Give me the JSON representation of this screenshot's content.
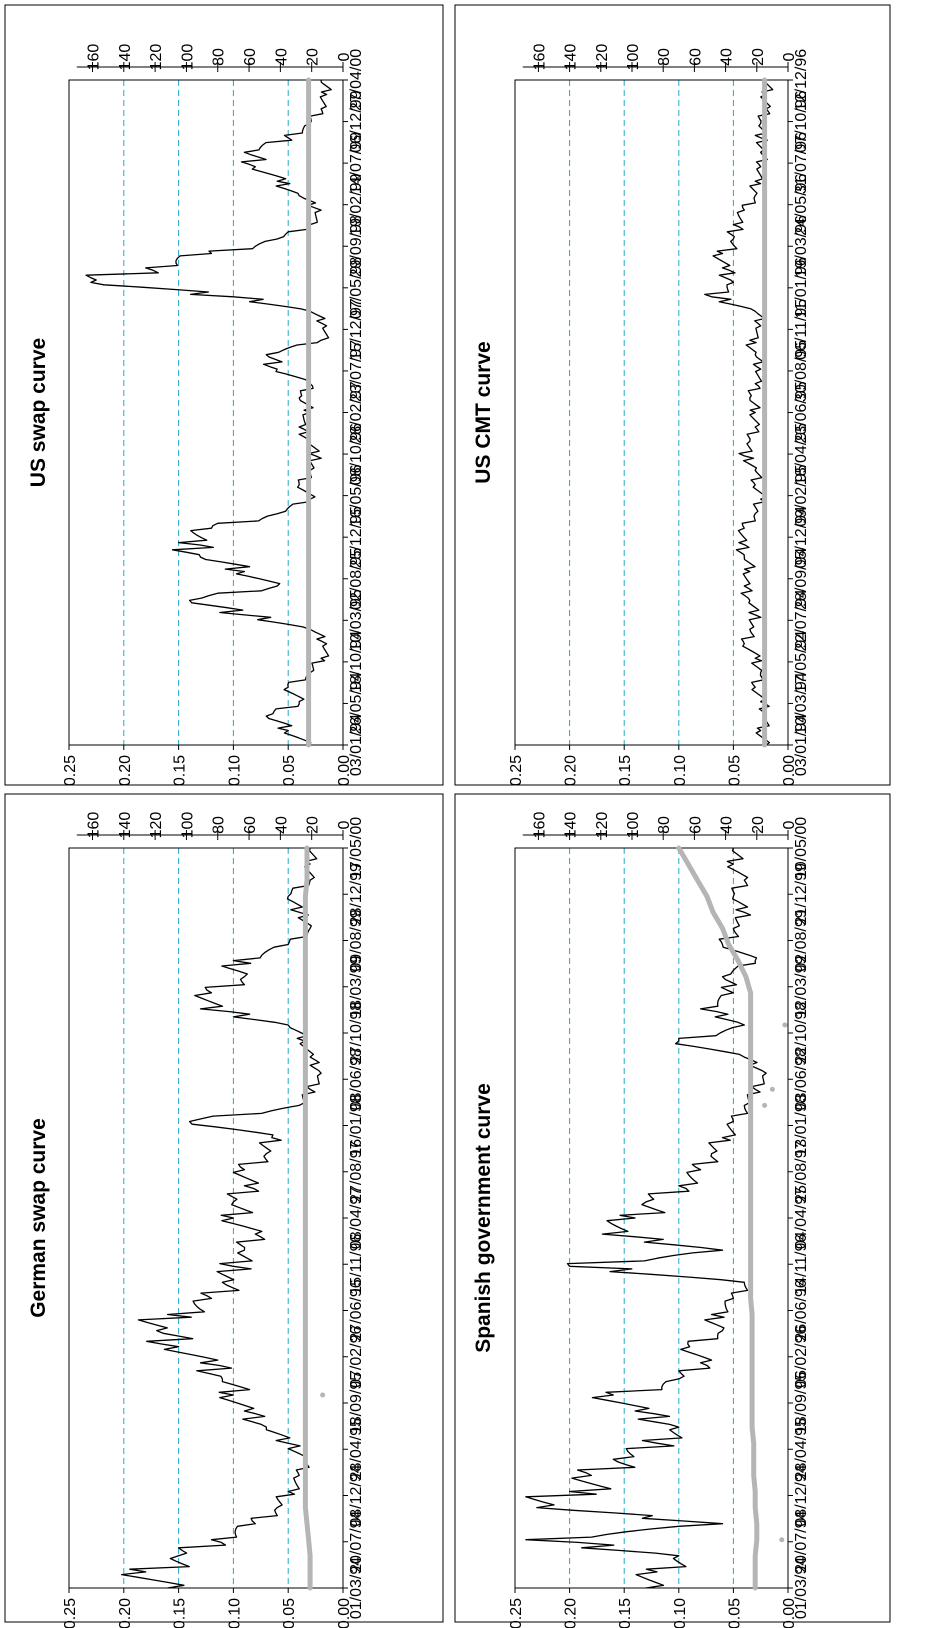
{
  "chart_data": [
    {
      "type": "line",
      "title": "German swap curve",
      "ylim_left": [
        0,
        0.25
      ],
      "left_ticks": [
        "0.00",
        "0.05",
        "0.10",
        "0.15",
        "0.20",
        "0.25"
      ],
      "ylim_right": [
        0,
        175
      ],
      "right_ticks": [
        "0",
        "20",
        "40",
        "60",
        "80",
        "100",
        "120",
        "140",
        "160"
      ],
      "grid": true,
      "rotation": "page rotated 90° counter-clockwise",
      "x_labels": [
        "01/03/94",
        "20/07/94",
        "08/12/94",
        "28/04/95",
        "18/09/95",
        "07/02/96",
        "27/06/96",
        "15/11/96",
        "08/04/97",
        "27/08/97",
        "16/01/98",
        "08/06/98",
        "27/10/98",
        "18/03/99",
        "09/08/99",
        "28/12/99",
        "17/05/00"
      ],
      "series": [
        {
          "color": "#000000",
          "values": [
            0.16,
            0.18,
            0.15,
            0.12,
            0.08,
            0.06,
            0.05,
            0.04,
            0.035,
            0.05,
            0.07,
            0.09,
            0.1,
            0.11,
            0.13,
            0.15,
            0.17,
            0.16,
            0.12,
            0.11,
            0.1,
            0.09,
            0.08,
            0.1,
            0.1,
            0.09,
            0.09,
            0.07,
            0.065,
            0.14,
            0.04,
            0.03,
            0.02,
            0.03,
            0.035,
            0.05,
            0.13,
            0.12,
            0.09,
            0.1,
            0.05,
            0.03,
            0.04,
            0.05,
            0.03,
            0.03,
            0.03
          ]
        },
        {
          "color": "#b5b5b5",
          "values": [
            21,
            21,
            21,
            22,
            23,
            24,
            24,
            24,
            24,
            24,
            24,
            24,
            24,
            24,
            24,
            24,
            24,
            24,
            24,
            24,
            24,
            24,
            24,
            24,
            24,
            24,
            24,
            24,
            24,
            24,
            24,
            24,
            24,
            24,
            24,
            24,
            24,
            24,
            24,
            24,
            24,
            24,
            24,
            24,
            23,
            23,
            23
          ],
          "outliers": [
            [
              12,
              13
            ]
          ]
        }
      ]
    },
    {
      "type": "line",
      "title": "US swap curve",
      "ylim_left": [
        0,
        0.25
      ],
      "left_ticks": [
        "0.00",
        "0.05",
        "0.10",
        "0.15",
        "0.20",
        "0.25"
      ],
      "ylim_right": [
        0,
        175
      ],
      "right_ticks": [
        "0",
        "20",
        "40",
        "60",
        "80",
        "100",
        "120",
        "140",
        "160"
      ],
      "grid": true,
      "rotation": "page rotated 90° counter-clockwise",
      "x_labels": [
        "03/01/94",
        "26/05/94",
        "18/10/94",
        "10/03/95",
        "02/08/95",
        "25/12/95",
        "16/05/96",
        "08/10/96",
        "28/02/97",
        "23/07/97",
        "15/12/97",
        "07/05/98",
        "29/09/98",
        "19/02/99",
        "14/07/99",
        "06/12/99",
        "27/04/00"
      ],
      "series": [
        {
          "color": "#000000",
          "values": [
            0.03,
            0.05,
            0.07,
            0.04,
            0.05,
            0.03,
            0.02,
            0.015,
            0.03,
            0.09,
            0.14,
            0.06,
            0.09,
            0.13,
            0.15,
            0.12,
            0.06,
            0.03,
            0.04,
            0.03,
            0.025,
            0.03,
            0.04,
            0.03,
            0.04,
            0.03,
            0.06,
            0.07,
            0.02,
            0.015,
            0.03,
            0.1,
            0.23,
            0.18,
            0.12,
            0.06,
            0.03,
            0.02,
            0.04,
            0.06,
            0.08,
            0.09,
            0.05,
            0.03,
            0.02,
            0.015,
            0.02
          ]
        },
        {
          "color": "#b5b5b5",
          "values": [
            22,
            22,
            22,
            22,
            22,
            22,
            22,
            22,
            22,
            22,
            22,
            22,
            22,
            22,
            22,
            22,
            22,
            22,
            22,
            22,
            22,
            22,
            22,
            22,
            22,
            22,
            22,
            22,
            22,
            22,
            22,
            22,
            22,
            22,
            22,
            22,
            22,
            22,
            22,
            22,
            22,
            22,
            22,
            22,
            22,
            22,
            22
          ]
        }
      ]
    },
    {
      "type": "line",
      "title": "Spanish government curve",
      "ylim_left": [
        0,
        0.25
      ],
      "left_ticks": [
        "0.00",
        "0.05",
        "0.10",
        "0.15",
        "0.20",
        "0.25"
      ],
      "ylim_right": [
        0,
        175
      ],
      "right_ticks": [
        "0",
        "20",
        "40",
        "60",
        "80",
        "100",
        "120",
        "140",
        "160"
      ],
      "grid": true,
      "rotation": "page rotated 90° counter-clockwise",
      "x_labels": [
        "01/03/94",
        "20/07/94",
        "08/12/94",
        "28/04/95",
        "18/09/95",
        "06/02/96",
        "26/06/96",
        "14/11/96",
        "04/04/97",
        "25/08/97",
        "13/01/98",
        "03/06/98",
        "22/10/98",
        "12/03/99",
        "02/08/99",
        "21/12/99",
        "10/05/00"
      ],
      "series": [
        {
          "color": "#000000",
          "values": [
            0.13,
            0.12,
            0.1,
            0.24,
            0.06,
            0.23,
            0.2,
            0.18,
            0.16,
            0.12,
            0.1,
            0.14,
            0.16,
            0.1,
            0.08,
            0.09,
            0.06,
            0.07,
            0.05,
            0.04,
            0.2,
            0.06,
            0.17,
            0.14,
            0.13,
            0.1,
            0.08,
            0.07,
            0.06,
            0.05,
            0.04,
            0.03,
            0.02,
            0.04,
            0.1,
            0.04,
            0.08,
            0.05,
            0.06,
            0.03,
            0.06,
            0.05,
            0.04,
            0.05,
            0.04,
            0.05,
            0.05
          ]
        },
        {
          "color": "#b5b5b5",
          "values": [
            21,
            21,
            21,
            20,
            20,
            21,
            21,
            22,
            22,
            22,
            23,
            23,
            23,
            23,
            23,
            23,
            23,
            23,
            24,
            24,
            24,
            24,
            24,
            24,
            24,
            24,
            24,
            24,
            24,
            24,
            24,
            24,
            24,
            24,
            24,
            24,
            24,
            24,
            27,
            32,
            38,
            42,
            48,
            52,
            58,
            64,
            70
          ],
          "outliers": [
            [
              3,
              4
            ],
            [
              30,
              15
            ],
            [
              31,
              10
            ],
            [
              35,
              2
            ]
          ]
        }
      ]
    },
    {
      "type": "line",
      "title": "US CMT curve",
      "ylim_left": [
        0,
        0.25
      ],
      "left_ticks": [
        "0.00",
        "0.05",
        "0.10",
        "0.15",
        "0.20",
        "0.25"
      ],
      "ylim_right": [
        0,
        175
      ],
      "right_ticks": [
        "0",
        "20",
        "40",
        "60",
        "80",
        "100",
        "120",
        "140",
        "160"
      ],
      "grid": true,
      "rotation": "page rotated 90° counter-clockwise",
      "x_labels": [
        "03/01/94",
        "10/03/94",
        "17/05/94",
        "22/07/94",
        "28/09/94",
        "05/12/94",
        "09/02/95",
        "18/04/95",
        "23/06/95",
        "30/08/95",
        "06/11/95",
        "11/01/96",
        "19/03/96",
        "24/05/96",
        "31/07/96",
        "07/10/96",
        "12/12/96"
      ],
      "series": [
        {
          "color": "#000000",
          "values": [
            0.02,
            0.025,
            0.02,
            0.025,
            0.03,
            0.025,
            0.03,
            0.04,
            0.035,
            0.03,
            0.035,
            0.04,
            0.035,
            0.04,
            0.045,
            0.04,
            0.03,
            0.025,
            0.03,
            0.03,
            0.04,
            0.035,
            0.03,
            0.03,
            0.035,
            0.03,
            0.025,
            0.03,
            0.035,
            0.025,
            0.03,
            0.07,
            0.05,
            0.06,
            0.06,
            0.05,
            0.05,
            0.04,
            0.03,
            0.03,
            0.025,
            0.025,
            0.025,
            0.025,
            0.02,
            0.02,
            0.02
          ]
        },
        {
          "color": "#b5b5b5",
          "values": [
            15,
            15,
            15,
            15,
            15,
            15,
            15,
            15,
            15,
            15,
            15,
            15,
            15,
            15,
            15,
            15,
            15,
            15,
            15,
            15,
            15,
            15,
            15,
            15,
            15,
            15,
            15,
            15,
            15,
            15,
            15,
            15,
            15,
            15,
            15,
            15,
            15,
            15,
            15,
            15,
            15,
            15,
            15,
            15,
            15,
            15,
            15
          ]
        }
      ]
    }
  ]
}
